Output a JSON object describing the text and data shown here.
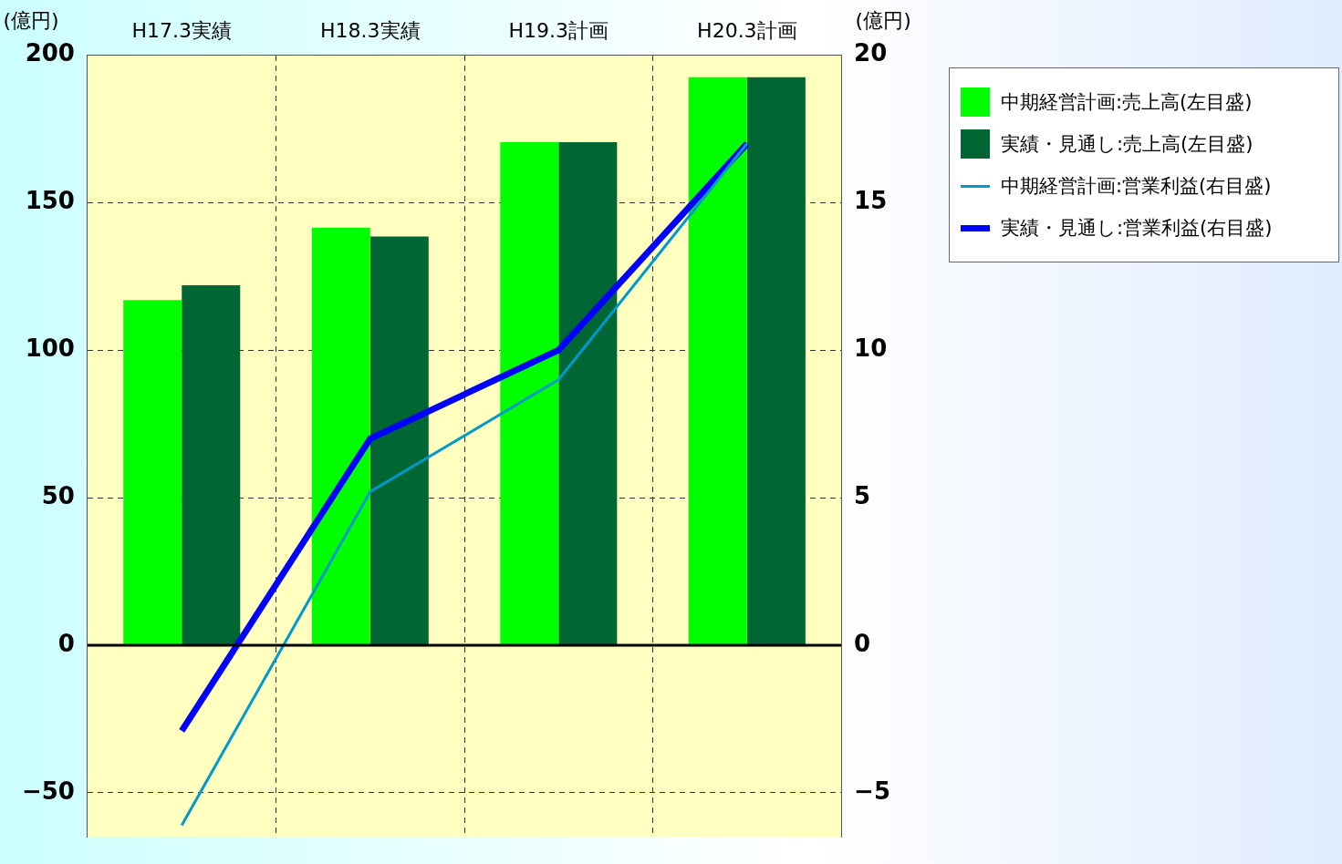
{
  "chart_data": {
    "type": "bar",
    "ylabel": "(億円)",
    "y2label": "(億円)",
    "categories": [
      "H17.3実績",
      "H18.3実績",
      "H19.3計画",
      "H20.3計画"
    ],
    "series": [
      {
        "name": "中期経営計画:売上高(左目盛)",
        "color": "#00ff00",
        "values": [
          117,
          141.5,
          170.5,
          192.5
        ]
      },
      {
        "name": "実績・見通し:売上高(左目盛)",
        "color": "#006633",
        "values": [
          122,
          138.5,
          170.5,
          192.5
        ]
      },
      {
        "name": "中期経営計画:営業利益(右目盛)",
        "type": "line",
        "axis": "y2",
        "color": "#0099cc",
        "values": [
          -6.1,
          5.2,
          9,
          17
        ]
      },
      {
        "name": "実績・見通し:営業利益(右目盛)",
        "type": "line",
        "axis": "y2",
        "color": "#0000ff",
        "values": [
          -2.9,
          7,
          10,
          17
        ]
      }
    ],
    "ylim": [
      -65,
      200
    ],
    "yticks": [
      -50,
      0,
      50,
      100,
      150,
      200
    ],
    "y2lim": [
      -6.5,
      20
    ],
    "y2ticks": [
      -5,
      0,
      5,
      10,
      15,
      20
    ],
    "grid": true,
    "legend": "top right",
    "marker": "none"
  }
}
